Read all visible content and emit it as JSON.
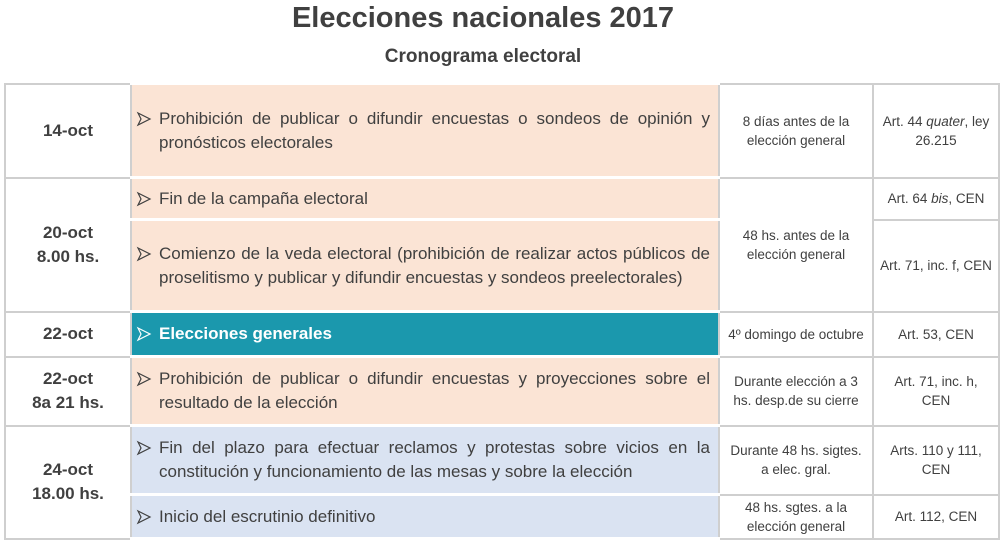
{
  "header": {
    "title": "Elecciones nacionales 2017",
    "subtitle": "Cronograma electoral"
  },
  "table": {
    "rows": [
      {
        "date": [
          "14-oct"
        ],
        "events": [
          {
            "text": "Prohibición de publicar o difundir encuestas o sondeos de opinión y pronósticos electorales",
            "highlight": "peach",
            "timing": "8 días antes de la elección general",
            "reference": [
              {
                "text": "Art. 44 "
              },
              {
                "text": "quater",
                "italic": true
              },
              {
                "text": ", ley 26.215"
              }
            ]
          }
        ]
      },
      {
        "date": [
          "20-oct",
          "8.00 hs."
        ],
        "events": [
          {
            "text": "Fin de la campaña electoral",
            "highlight": "peach",
            "timing": "48 hs. antes de la elección general",
            "reference": [
              {
                "text": "Art. 64 "
              },
              {
                "text": "bis",
                "italic": true
              },
              {
                "text": ", CEN"
              }
            ]
          },
          {
            "text": "Comienzo de la veda electoral (prohibición de realizar actos públicos de proselitismo y publicar y difundir encuestas y sondeos preelectorales)",
            "highlight": "peach",
            "reference": [
              {
                "text": "Art. 71, inc. f, CEN"
              }
            ]
          }
        ]
      },
      {
        "date": [
          "22-oct"
        ],
        "events": [
          {
            "text": "Elecciones generales",
            "highlight": "teal",
            "timing": "4º domingo de octubre",
            "reference": [
              {
                "text": "Art. 53, CEN"
              }
            ]
          }
        ]
      },
      {
        "date": [
          "22-oct",
          "8a 21 hs."
        ],
        "events": [
          {
            "text": "Prohibición de publicar o difundir encuestas y proyecciones sobre el resultado de la elección",
            "highlight": "peach",
            "timing": "Durante elección a 3 hs. desp.de su cierre",
            "reference": [
              {
                "text": "Art. 71, inc. h, CEN"
              }
            ]
          }
        ]
      },
      {
        "date": [
          "24-oct",
          "18.00 hs."
        ],
        "events": [
          {
            "text": "Fin del plazo para efectuar reclamos y protestas sobre vicios en la constitución y funcionamiento de las mesas y sobre la elección",
            "highlight": "blue",
            "timing": "Durante 48 hs. sigtes. a elec. gral.",
            "reference": [
              {
                "text": "Arts. 110 y 111, CEN"
              }
            ]
          },
          {
            "text": "Inicio del escrutinio definitivo",
            "highlight": "blue",
            "timing": "48 hs. sgtes. a la elección general",
            "reference": [
              {
                "text": "Art. 112, CEN"
              }
            ]
          }
        ]
      }
    ]
  }
}
